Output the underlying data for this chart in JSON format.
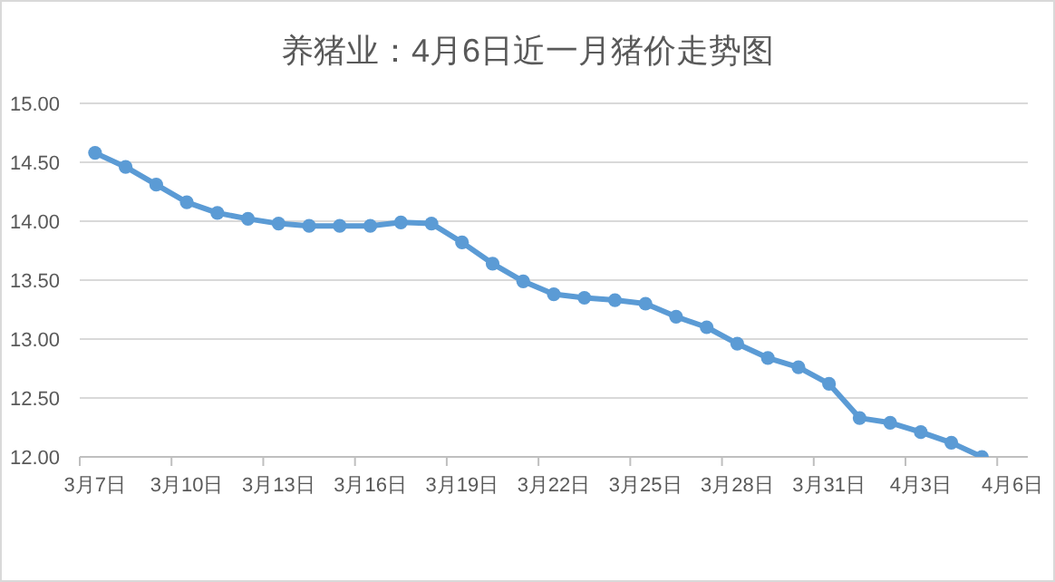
{
  "chart_data": {
    "type": "line",
    "title": "养猪业：4月6日近一月猪价走势图",
    "categories": [
      "3月7日",
      null,
      null,
      "3月10日",
      null,
      null,
      "3月13日",
      null,
      null,
      "3月16日",
      null,
      null,
      "3月19日",
      null,
      null,
      "3月22日",
      null,
      null,
      "3月25日",
      null,
      null,
      "3月28日",
      null,
      null,
      "3月31日",
      null,
      null,
      "4月3日",
      null,
      null,
      "4月6日"
    ],
    "series": [
      {
        "color": "#5b9bd5",
        "values": [
          14.58,
          14.46,
          14.31,
          14.16,
          14.07,
          14.02,
          13.98,
          13.96,
          13.96,
          13.96,
          13.99,
          13.98,
          13.82,
          13.64,
          13.49,
          13.38,
          13.35,
          13.33,
          13.3,
          13.19,
          13.1,
          12.96,
          12.84,
          12.76,
          12.62,
          12.33,
          12.29,
          12.21,
          12.12,
          12.0,
          null
        ]
      }
    ],
    "ylim": [
      12,
      15
    ],
    "yticks": [
      {
        "value": 12,
        "label": "12.00"
      },
      {
        "value": 12.5,
        "label": "12.50"
      },
      {
        "value": 13,
        "label": "13.00"
      },
      {
        "value": 13.5,
        "label": "13.50"
      },
      {
        "value": 14,
        "label": "14.00"
      },
      {
        "value": 14.5,
        "label": "14.50"
      },
      {
        "value": 15,
        "label": "15.00"
      }
    ],
    "grid": "y",
    "marker": "circle",
    "line_style": "solid"
  }
}
